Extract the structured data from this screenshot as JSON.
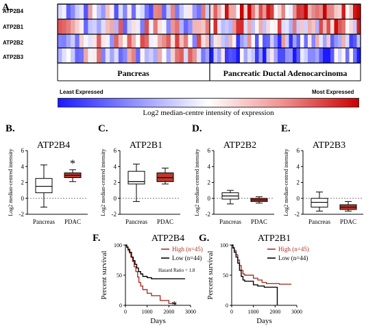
{
  "panels": {
    "A": "A.",
    "B": "B.",
    "C": "C.",
    "D": "D.",
    "E": "E.",
    "F": "F.",
    "G": "G."
  },
  "heatmap": {
    "rows": [
      "ATP2B4",
      "ATP2B1",
      "ATP2B2",
      "ATP2B3"
    ],
    "group_labels": [
      "Pancreas",
      "Pancreatic Ductal Adenocarcinoma"
    ],
    "n_normal": 35,
    "n_tumor": 40
  },
  "colorbar": {
    "low_label": "Least Expressed",
    "high_label": "Most Expressed",
    "caption": "Log2 median-centre intensity of expression",
    "low_color": "#1a1aff",
    "mid_color": "#ffffff",
    "high_color": "#cc0000"
  },
  "chart_data": [
    {
      "type": "box",
      "panel": "B.",
      "title": "ATP2B4",
      "ylabel": "Log2 median-centred intensity",
      "ylim": [
        -2,
        6
      ],
      "yticks": [
        "-2",
        "0",
        "2",
        "4",
        "6"
      ],
      "categories": [
        "Pancreas",
        "PDAC"
      ],
      "boxes": [
        {
          "name": "Pancreas",
          "min": -1.1,
          "q1": 0.7,
          "median": 1.5,
          "q3": 2.5,
          "max": 4.2,
          "fill": "#ffffff"
        },
        {
          "name": "PDAC",
          "min": 2.1,
          "q1": 2.6,
          "median": 2.9,
          "q3": 3.2,
          "max": 3.6,
          "fill": "#c0392b"
        }
      ],
      "annotation": "*"
    },
    {
      "type": "box",
      "panel": "C.",
      "title": "ATP2B1",
      "ylabel": "Log2 median-centred intensity",
      "ylim": [
        -2,
        6
      ],
      "yticks": [
        "-2",
        "0",
        "2",
        "4",
        "6"
      ],
      "categories": [
        "Pancreas",
        "PDAC"
      ],
      "boxes": [
        {
          "name": "Pancreas",
          "min": -0.4,
          "q1": 1.8,
          "median": 2.1,
          "q3": 3.4,
          "max": 4.3,
          "fill": "#ffffff"
        },
        {
          "name": "PDAC",
          "min": 1.8,
          "q1": 2.1,
          "median": 2.6,
          "q3": 3.2,
          "max": 3.8,
          "fill": "#c0392b"
        }
      ]
    },
    {
      "type": "box",
      "panel": "D.",
      "title": "ATP2B2",
      "ylabel": "Log2 median-centred intensity",
      "ylim": [
        -2,
        6
      ],
      "yticks": [
        "-2",
        "0",
        "2",
        "4",
        "6"
      ],
      "categories": [
        "Pancreas",
        "PDAC"
      ],
      "boxes": [
        {
          "name": "Pancreas",
          "min": -0.7,
          "q1": -0.1,
          "median": 0.3,
          "q3": 0.7,
          "max": 1.0,
          "fill": "#ffffff"
        },
        {
          "name": "PDAC",
          "min": -0.6,
          "q1": -0.4,
          "median": -0.2,
          "q3": 0.0,
          "max": 0.2,
          "fill": "#c0392b"
        }
      ]
    },
    {
      "type": "box",
      "panel": "E.",
      "title": "ATP2B3",
      "ylabel": "Log2 median-centred intensity",
      "ylim": [
        -2,
        6
      ],
      "yticks": [
        "-2",
        "0",
        "2",
        "4",
        "6"
      ],
      "categories": [
        "Pancreas",
        "PDAC"
      ],
      "boxes": [
        {
          "name": "Pancreas",
          "min": -1.6,
          "q1": -1.1,
          "median": -0.5,
          "q3": 0.0,
          "max": 0.8,
          "fill": "#ffffff"
        },
        {
          "name": "PDAC",
          "min": -1.6,
          "q1": -1.4,
          "median": -1.1,
          "q3": -0.8,
          "max": -0.4,
          "fill": "#c0392b"
        }
      ]
    },
    {
      "type": "line",
      "panel": "F.",
      "title": "ATP2B4",
      "xlabel": "Days",
      "ylabel": "Percent survival",
      "xlim": [
        0,
        3000
      ],
      "ylim": [
        0,
        100
      ],
      "xticks": [
        "0",
        "1000",
        "2000",
        "3000"
      ],
      "yticks": [
        "0",
        "50",
        "100"
      ],
      "hazard_ratio": "Hazard Ratio = 1.8",
      "annotation": "*",
      "series": [
        {
          "name": "High (n=45)",
          "color": "#a93226",
          "points": [
            [
              0,
              100
            ],
            [
              60,
              96
            ],
            [
              120,
              91
            ],
            [
              180,
              87
            ],
            [
              250,
              80
            ],
            [
              330,
              73
            ],
            [
              400,
              64
            ],
            [
              480,
              56
            ],
            [
              560,
              47
            ],
            [
              620,
              38
            ],
            [
              700,
              32
            ],
            [
              800,
              26
            ],
            [
              900,
              26
            ],
            [
              1000,
              20
            ],
            [
              1100,
              20
            ],
            [
              1200,
              16
            ],
            [
              1400,
              16
            ],
            [
              1600,
              8
            ],
            [
              1800,
              8
            ],
            [
              2000,
              3
            ],
            [
              2200,
              3
            ],
            [
              2300,
              0
            ]
          ]
        },
        {
          "name": "Low (n=44)",
          "color": "#000000",
          "points": [
            [
              0,
              100
            ],
            [
              60,
              97
            ],
            [
              120,
              93
            ],
            [
              200,
              88
            ],
            [
              280,
              80
            ],
            [
              360,
              74
            ],
            [
              440,
              68
            ],
            [
              520,
              62
            ],
            [
              600,
              56
            ],
            [
              700,
              52
            ],
            [
              800,
              48
            ],
            [
              900,
              48
            ],
            [
              1000,
              46
            ],
            [
              1200,
              44
            ],
            [
              2000,
              44
            ],
            [
              2750,
              44
            ]
          ]
        }
      ]
    },
    {
      "type": "line",
      "panel": "G.",
      "title": "ATP2B1",
      "xlabel": "Days",
      "ylabel": "Percent survival",
      "xlim": [
        0,
        3000
      ],
      "ylim": [
        0,
        100
      ],
      "xticks": [
        "0",
        "1000",
        "2000",
        "3000"
      ],
      "yticks": [
        "0",
        "50",
        "100"
      ],
      "series": [
        {
          "name": "High (n=45)",
          "color": "#a93226",
          "points": [
            [
              0,
              100
            ],
            [
              60,
              96
            ],
            [
              120,
              91
            ],
            [
              200,
              84
            ],
            [
              280,
              75
            ],
            [
              360,
              66
            ],
            [
              440,
              58
            ],
            [
              520,
              52
            ],
            [
              600,
              50
            ],
            [
              800,
              50
            ],
            [
              1000,
              45
            ],
            [
              1200,
              42
            ],
            [
              1400,
              38
            ],
            [
              1600,
              36
            ],
            [
              2000,
              36
            ],
            [
              2200,
              35
            ],
            [
              2750,
              35
            ]
          ]
        },
        {
          "name": "Low (n=44)",
          "color": "#000000",
          "points": [
            [
              0,
              100
            ],
            [
              60,
              95
            ],
            [
              120,
              88
            ],
            [
              200,
              80
            ],
            [
              280,
              70
            ],
            [
              360,
              58
            ],
            [
              440,
              48
            ],
            [
              520,
              42
            ],
            [
              600,
              40
            ],
            [
              800,
              40
            ],
            [
              1000,
              34
            ],
            [
              1200,
              32
            ],
            [
              1500,
              30
            ],
            [
              2000,
              30
            ],
            [
              2100,
              30
            ],
            [
              2100,
              0
            ]
          ]
        }
      ]
    }
  ]
}
